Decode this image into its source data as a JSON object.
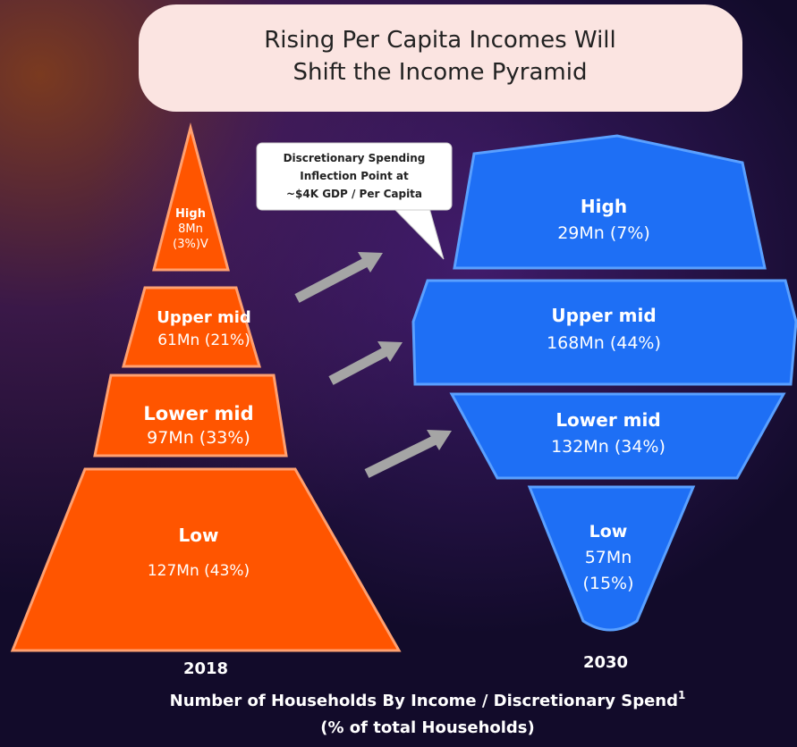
{
  "title": {
    "lines": [
      "Rising Per Capita Incomes Will",
      "Shift the Income Pyramid"
    ]
  },
  "callout": {
    "lines": [
      "Discretionary Spending",
      "Inflection Point at",
      "~$4K GDP / Per Capita"
    ]
  },
  "pyramid_2018": {
    "year": "2018",
    "levels": [
      {
        "name": "High",
        "lines": [
          "8Mn",
          "(3%)V"
        ]
      },
      {
        "name": "Upper mid",
        "lines": [
          "61Mn (21%)"
        ]
      },
      {
        "name": "Lower mid",
        "lines": [
          "97Mn (33%)"
        ]
      },
      {
        "name": "Low",
        "lines": [
          "127Mn (43%)"
        ]
      }
    ]
  },
  "pyramid_2030": {
    "year": "2030",
    "levels": [
      {
        "name": "High",
        "lines": [
          "29Mn (7%)"
        ]
      },
      {
        "name": "Upper mid",
        "lines": [
          "168Mn (44%)"
        ]
      },
      {
        "name": "Lower mid",
        "lines": [
          "132Mn (34%)"
        ]
      },
      {
        "name": "Low",
        "lines": [
          "57Mn",
          "(15%)"
        ]
      }
    ]
  },
  "footer": {
    "line1": "Number of Households By Income / Discretionary Spend",
    "footnote": "1",
    "line2": "(% of total Households)"
  }
}
